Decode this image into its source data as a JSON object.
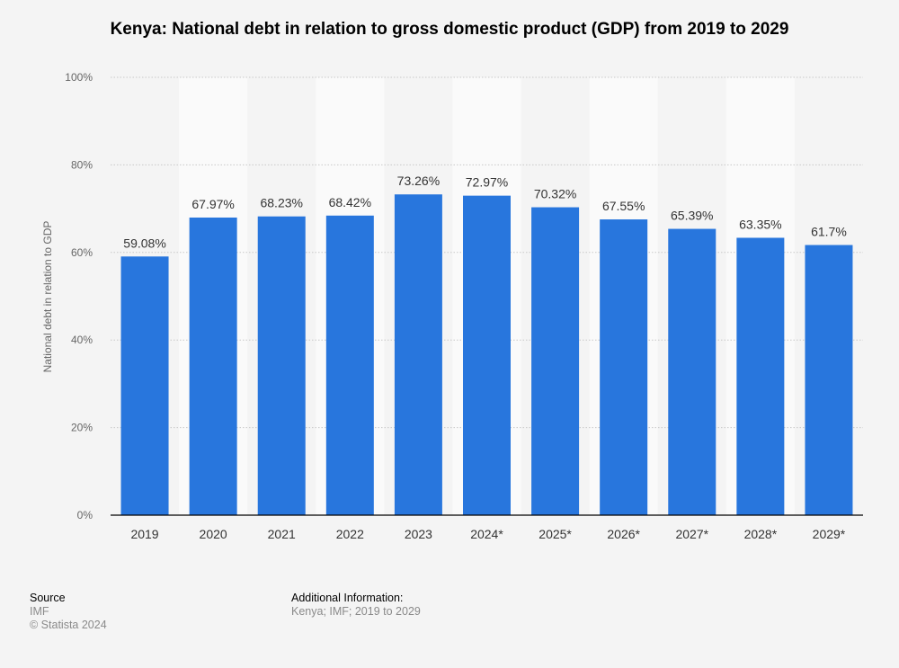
{
  "chart_data": {
    "type": "bar",
    "title": "Kenya: National debt in relation to gross domestic product (GDP) from 2019 to 2029",
    "xlabel": "",
    "ylabel": "National debt in relation to GDP",
    "ylim": [
      0,
      100
    ],
    "yticks": [
      0,
      20,
      40,
      60,
      80,
      100
    ],
    "ytick_labels": [
      "0%",
      "20%",
      "40%",
      "60%",
      "80%",
      "100%"
    ],
    "grid": true,
    "categories": [
      "2019",
      "2020",
      "2021",
      "2022",
      "2023",
      "2024*",
      "2025*",
      "2026*",
      "2027*",
      "2028*",
      "2029*"
    ],
    "values": [
      59.08,
      67.97,
      68.23,
      68.42,
      73.26,
      72.97,
      70.32,
      67.55,
      65.39,
      63.35,
      61.7
    ],
    "data_labels": [
      "59.08%",
      "67.97%",
      "68.23%",
      "68.42%",
      "73.26%",
      "72.97%",
      "70.32%",
      "67.55%",
      "65.39%",
      "63.35%",
      "61.7%"
    ],
    "bar_color": "#2876dd"
  },
  "footer": {
    "source_heading": "Source",
    "source": "IMF",
    "copyright": "© Statista 2024",
    "additional_heading": "Additional Information:",
    "additional": "Kenya; IMF; 2019 to 2029"
  }
}
